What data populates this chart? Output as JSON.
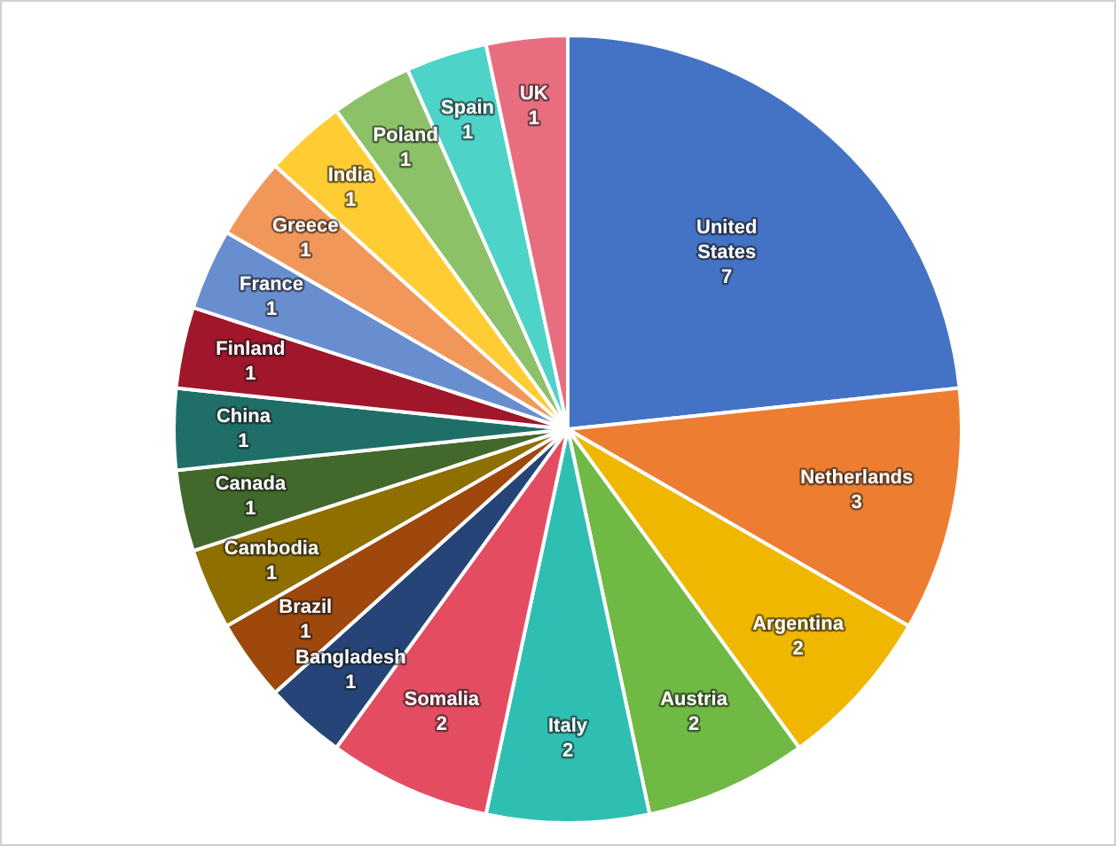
{
  "chart_data": {
    "type": "pie",
    "categories": [
      "United States",
      "Netherlands",
      "Argentina",
      "Austria",
      "Italy",
      "Somalia",
      "Bangladesh",
      "Brazil",
      "Cambodia",
      "Canada",
      "China",
      "Finland",
      "France",
      "Greece",
      "India",
      "Poland",
      "Spain",
      "UK"
    ],
    "values": [
      7,
      3,
      2,
      2,
      2,
      2,
      1,
      1,
      1,
      1,
      1,
      1,
      1,
      1,
      1,
      1,
      1,
      1
    ],
    "colors": [
      "#4472c4",
      "#ed7d31",
      "#f0b700",
      "#70b944",
      "#2fbfb2",
      "#e44c62",
      "#264478",
      "#9e480e",
      "#8f6f00",
      "#43682b",
      "#1f6f68",
      "#a0162a",
      "#698ed0",
      "#f1975a",
      "#ffcd33",
      "#8cc168",
      "#4dd3c8",
      "#e86e7f"
    ],
    "data_labels": true
  }
}
